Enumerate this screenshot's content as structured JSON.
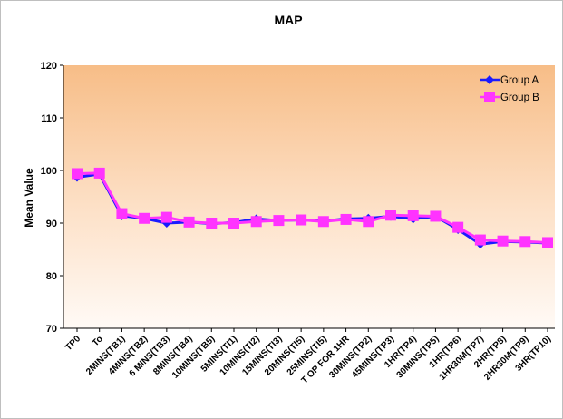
{
  "chart_data": {
    "type": "line",
    "title": "MAP",
    "ylabel": "Mean Value",
    "xlabel": "",
    "ylim": [
      70,
      120
    ],
    "yticks": [
      70,
      80,
      90,
      100,
      110,
      120
    ],
    "grid": false,
    "legend_position": "top-right",
    "background": "orange-to-white vertical gradient",
    "categories": [
      "TP0",
      "To",
      "2MINS(TB1)",
      "4MINS(TB2)",
      "6 MINS(TB3)",
      "8MINS(TB4)",
      "10MINS(TB5)",
      "5MINS(TI1)",
      "10MINS(TI2)",
      "15MINS(TI3)",
      "20MINS(TI5)",
      "25MINS(TI5)",
      "T OP FOR 1HR",
      "30MINS(TP2)",
      "45MINS(TP3)",
      "1HR(TP4)",
      "30MINS(TP5)",
      "1HR(TP6)",
      "1HR30M(TP7)",
      "2HR(TP8)",
      "2HR30M(TP9)",
      "3HR(TP10)"
    ],
    "series": [
      {
        "name": "Group A",
        "color": "#1a1aff",
        "marker": "diamond",
        "values": [
          98.7,
          99.3,
          91.4,
          90.9,
          90.0,
          90.2,
          89.9,
          90.1,
          90.8,
          90.5,
          90.6,
          90.4,
          90.8,
          90.9,
          91.3,
          90.8,
          91.3,
          88.8,
          86.0,
          86.5,
          86.4,
          86.2
        ]
      },
      {
        "name": "Group B",
        "color": "#ff33ff",
        "marker": "square",
        "values": [
          99.4,
          99.5,
          91.8,
          90.9,
          91.1,
          90.2,
          90.0,
          90.0,
          90.3,
          90.5,
          90.6,
          90.3,
          90.7,
          90.3,
          91.5,
          91.4,
          91.3,
          89.2,
          86.8,
          86.6,
          86.5,
          86.3
        ]
      }
    ]
  }
}
